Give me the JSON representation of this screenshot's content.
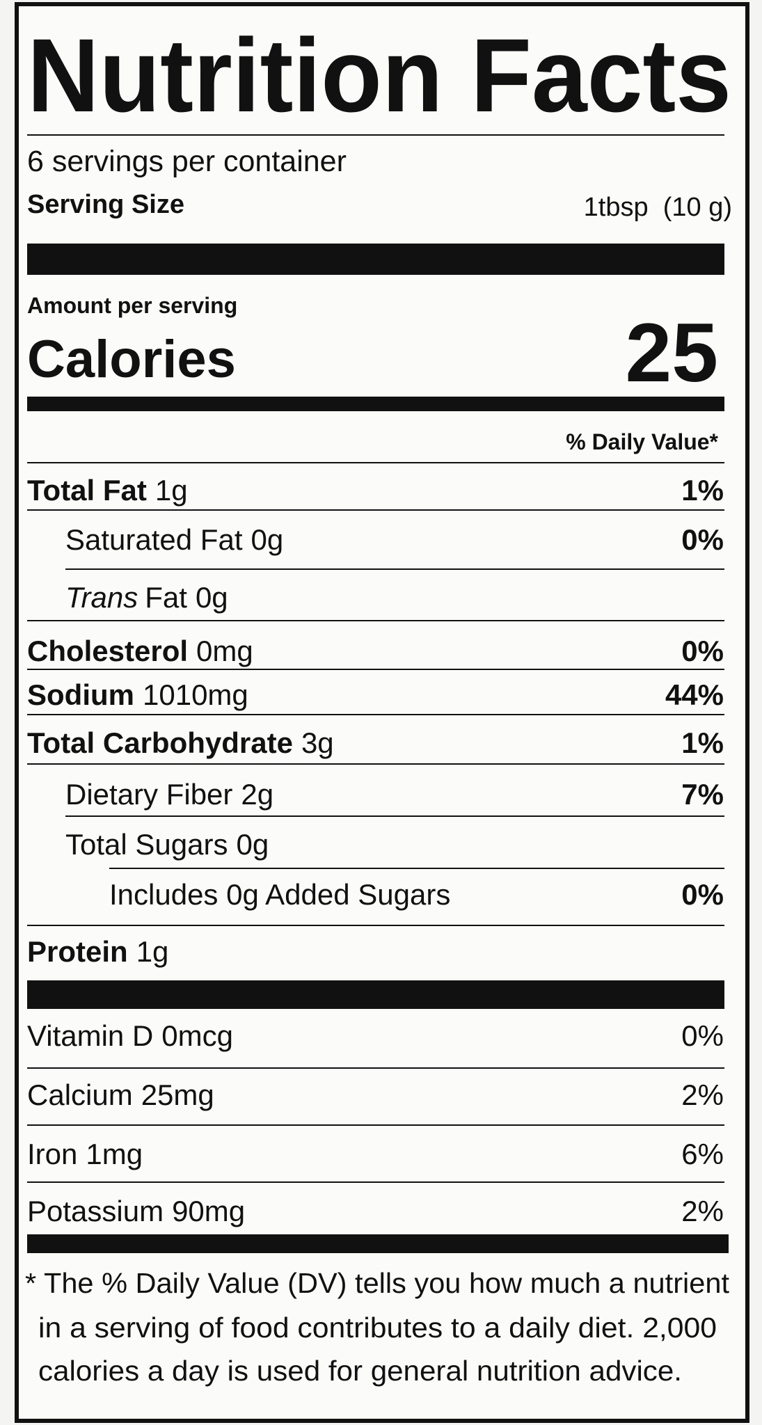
{
  "title": "Nutrition Facts",
  "servings": "6 servings per container",
  "serving_size": {
    "label": "Serving Size",
    "value": "1tbsp  (10 g)"
  },
  "amount_per_serving": "Amount per serving",
  "calories": {
    "label": "Calories",
    "value": "25"
  },
  "daily_value_header": "% Daily Value*",
  "nutrients": [
    {
      "name": "Total Fat",
      "amount": "1g",
      "dv": "1%"
    },
    {
      "label": "Saturated Fat",
      "amount": "0g",
      "dv": "0%"
    },
    {
      "italic": "Trans",
      "label": "Fat",
      "amount": "0g"
    },
    {
      "name": "Cholesterol",
      "amount": "0mg",
      "dv": "0%"
    },
    {
      "name": "Sodium",
      "amount": "1010mg",
      "dv": "44%"
    },
    {
      "name": "Total Carbohydrate",
      "amount": "3g",
      "dv": "1%"
    },
    {
      "label": "Dietary Fiber",
      "amount": "2g",
      "dv": "7%"
    },
    {
      "label": "Total Sugars",
      "amount": "0g"
    },
    {
      "label": "Includes 0g Added Sugars",
      "dv": "0%"
    },
    {
      "name": "Protein",
      "amount": "1g"
    }
  ],
  "vitamins": [
    {
      "label": "Vitamin D",
      "amount": "0mcg",
      "dv": "0%"
    },
    {
      "label": "Calcium",
      "amount": "25mg",
      "dv": "2%"
    },
    {
      "label": "Iron",
      "amount": "1mg",
      "dv": "6%"
    },
    {
      "label": "Potassium",
      "amount": "90mg",
      "dv": "2%"
    }
  ],
  "footnote": [
    "* The % Daily Value (DV) tells you how much a nutrient",
    "in a serving of food contributes to a daily diet. 2,000",
    "calories a day is used for general nutrition advice."
  ]
}
